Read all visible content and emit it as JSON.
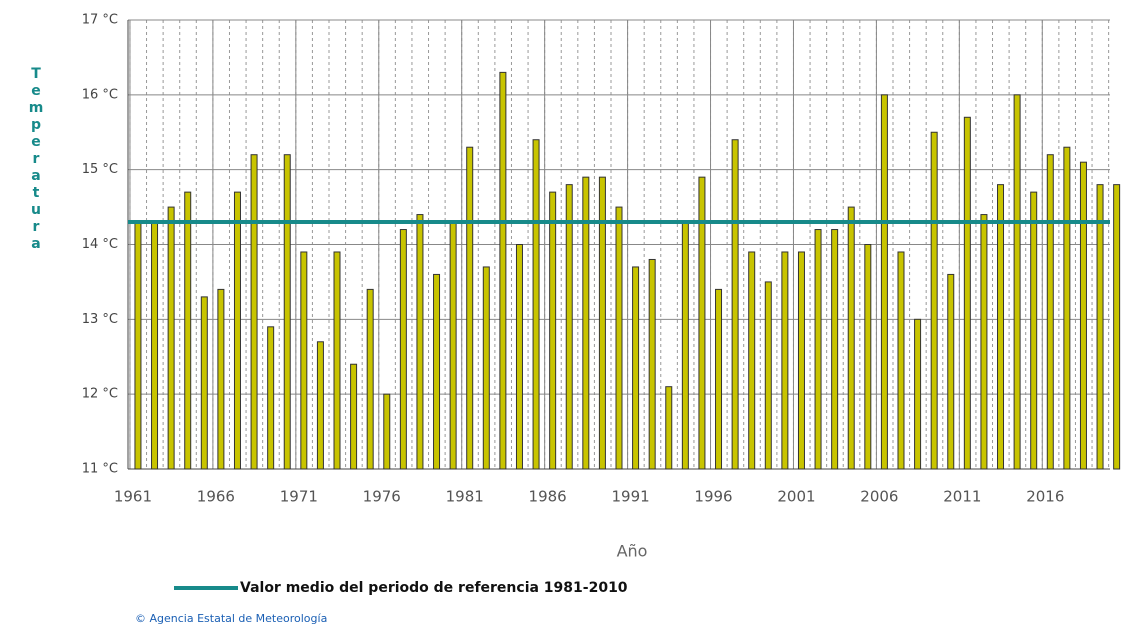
{
  "chart_data": {
    "type": "bar",
    "y_label": "Temperatura",
    "x_label": "Año",
    "x": [
      1961,
      1962,
      1963,
      1964,
      1965,
      1966,
      1967,
      1968,
      1969,
      1970,
      1971,
      1972,
      1973,
      1974,
      1975,
      1976,
      1977,
      1978,
      1979,
      1980,
      1981,
      1982,
      1983,
      1984,
      1985,
      1986,
      1987,
      1988,
      1989,
      1990,
      1991,
      1992,
      1993,
      1994,
      1995,
      1996,
      1997,
      1998,
      1999,
      2000,
      2001,
      2002,
      2003,
      2004,
      2005,
      2006,
      2007,
      2008,
      2009,
      2010,
      2011,
      2012,
      2013,
      2014,
      2015,
      2016,
      2017,
      2018,
      2019,
      2020
    ],
    "values": [
      14.3,
      14.3,
      14.5,
      14.7,
      13.3,
      13.4,
      14.7,
      15.2,
      12.9,
      15.2,
      13.9,
      12.7,
      13.9,
      12.4,
      13.4,
      12.0,
      14.2,
      14.4,
      13.6,
      14.3,
      15.3,
      13.7,
      16.3,
      14.0,
      15.4,
      14.7,
      14.8,
      14.9,
      14.9,
      14.5,
      13.7,
      13.8,
      12.1,
      14.3,
      14.9,
      13.4,
      15.4,
      13.9,
      13.5,
      13.9,
      13.9,
      14.2,
      14.2,
      14.5,
      14.0,
      16.0,
      13.9,
      13.0,
      15.5,
      13.6,
      15.7,
      14.4,
      14.8,
      16.0,
      14.7,
      15.2,
      15.3,
      15.1,
      14.8,
      14.8
    ],
    "color": "#c8c400",
    "xlim": [
      1960.4,
      2019.6
    ],
    "xticks": [
      1961,
      1966,
      1971,
      1976,
      1981,
      1986,
      1991,
      1996,
      2001,
      2006,
      2011,
      2016
    ],
    "ylim": [
      11,
      17
    ],
    "yticks": [
      {
        "value": 11,
        "label": "11 °C"
      },
      {
        "value": 12,
        "label": "12 °C"
      },
      {
        "value": 13,
        "label": "13 °C"
      },
      {
        "value": 14,
        "label": "14 °C"
      },
      {
        "value": 15,
        "label": "15 °C"
      },
      {
        "value": 16,
        "label": "16 °C"
      },
      {
        "value": 17,
        "label": "17 °C"
      }
    ],
    "grid": true,
    "reference_line": {
      "value": 14.3,
      "label": "Valor medio del periodo de referencia 1981-2010",
      "color": "#178a8a"
    },
    "source": "© Agencia Estatal de Meteorología"
  }
}
